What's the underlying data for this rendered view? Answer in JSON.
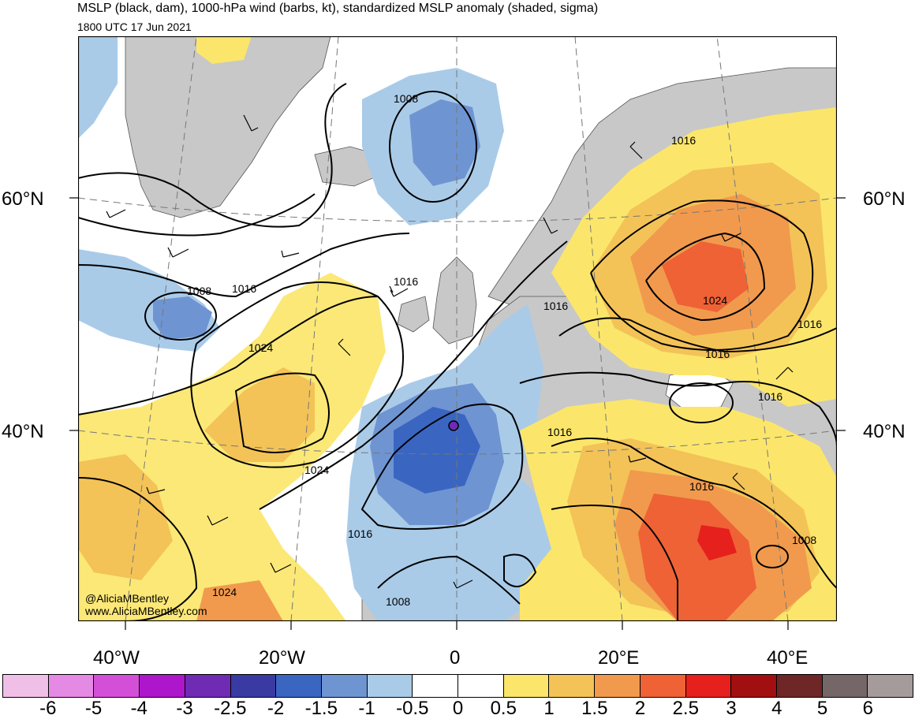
{
  "title": "MSLP (black, dam), 1000-hPa wind (barbs, kt), standardized MSLP anomaly (shaded, sigma)",
  "subtitle": "1800 UTC 17 Jun 2021",
  "credit": {
    "handle": "@AliciaMBentley",
    "url": "www.AliciaMBentley.com"
  },
  "axes": {
    "lat_labels": [
      "60°N",
      "40°N"
    ],
    "lon_labels": [
      "40°W",
      "20°W",
      "0",
      "20°E",
      "40°E"
    ]
  },
  "contour_labels": [
    "1008",
    "1016",
    "1024"
  ],
  "colorbar": {
    "labels": [
      "-6",
      "-5",
      "-4",
      "-3",
      "-2.5",
      "-2",
      "-1.5",
      "-1",
      "-0.5",
      "0",
      "0.5",
      "1",
      "1.5",
      "2",
      "2.5",
      "3",
      "4",
      "5",
      "6"
    ],
    "colors": [
      "#f0bfe8",
      "#e58ae4",
      "#d44fd8",
      "#ad16cb",
      "#6f2bb4",
      "#3a3aa3",
      "#3a66c2",
      "#6f94d2",
      "#a9cbe8",
      "#ffffff",
      "#ffffff",
      "#fbe66b",
      "#f3c357",
      "#f19a4d",
      "#ee6236",
      "#e5201d",
      "#a10f10",
      "#6f2626",
      "#756767",
      "#a59b9b"
    ]
  }
}
